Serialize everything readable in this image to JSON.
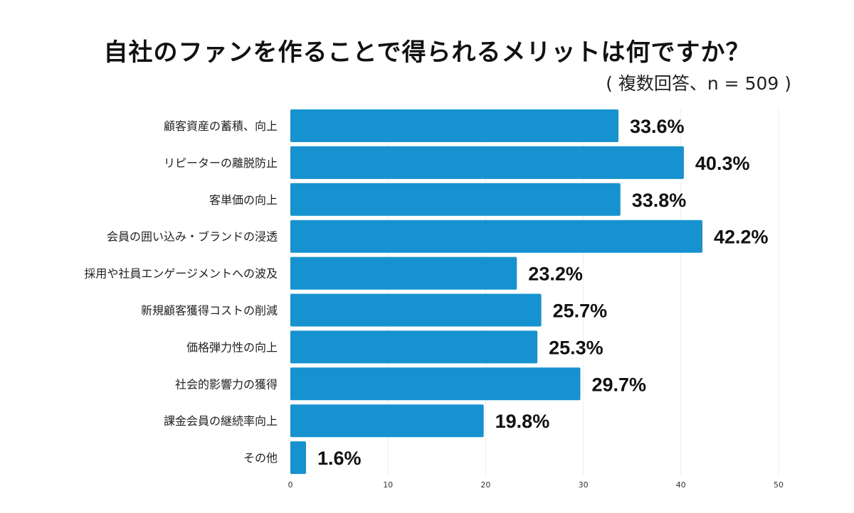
{
  "chart_data": {
    "type": "bar",
    "orientation": "horizontal",
    "title": "自社のファンを作ることで得られるメリットは何ですか？",
    "subtitle": "( 複数回答、n = 509 )",
    "categories": [
      "顧客資産の蓄積、向上",
      "リピーターの離脱防止",
      "客単価の向上",
      "会員の囲い込み・ブランドの浸透",
      "採用や社員エンゲージメントへの波及",
      "新規顧客獲得コストの削減",
      "価格弾力性の向上",
      "社会的影響力の獲得",
      "課金会員の継続率向上",
      "その他"
    ],
    "values": [
      33.6,
      40.3,
      33.8,
      42.2,
      23.2,
      25.7,
      25.3,
      29.7,
      19.8,
      1.6
    ],
    "data_labels": [
      "33.6%",
      "40.3%",
      "33.8%",
      "42.2%",
      "23.2%",
      "25.7%",
      "25.3%",
      "29.7%",
      "19.8%",
      "1.6%"
    ],
    "xlim": [
      0,
      50
    ],
    "xticks": [
      "0",
      "10",
      "20",
      "30",
      "40",
      "50"
    ],
    "grid": true,
    "bar_color": "#1592cf"
  }
}
